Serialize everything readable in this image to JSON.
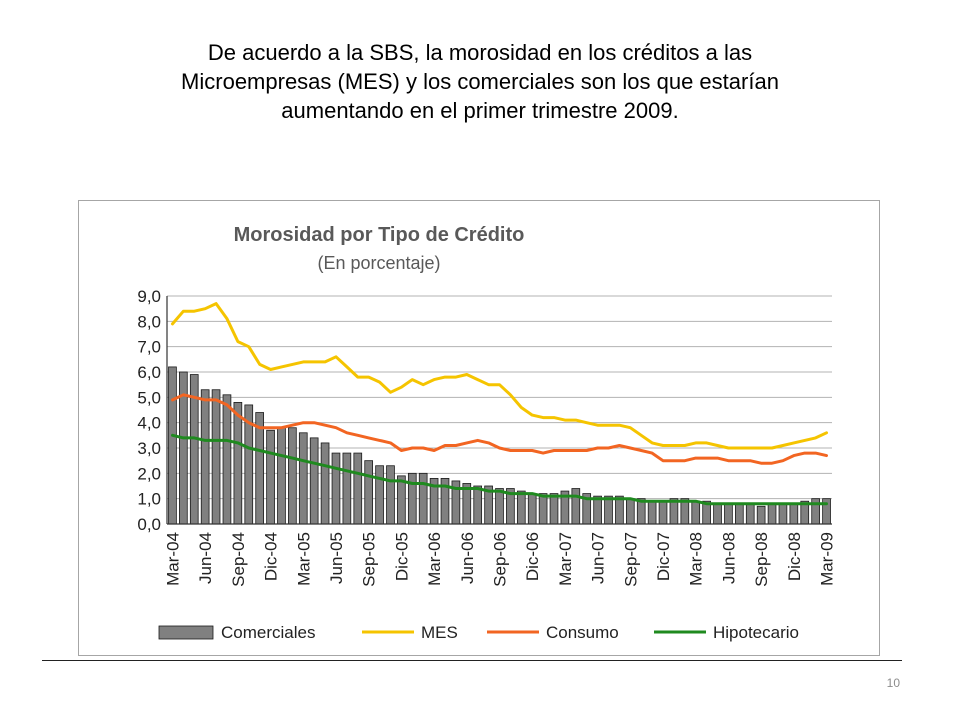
{
  "slide": {
    "title_lines": [
      "De acuerdo a la SBS, la morosidad en los créditos a las",
      "Microempresas (MES) y los comerciales son los que estarían",
      "aumentando en el primer trimestre 2009."
    ],
    "page_number": "10"
  },
  "chart_data": {
    "type": "bar",
    "title": "Morosidad por Tipo de Crédito",
    "subtitle": "(En porcentaje)",
    "ylim": [
      0,
      9
    ],
    "yticks": [
      "0,0",
      "1,0",
      "2,0",
      "3,0",
      "4,0",
      "5,0",
      "6,0",
      "7,0",
      "8,0",
      "9,0"
    ],
    "grid": true,
    "legend_position": "bottom",
    "x_tick_labels": [
      "Mar-04",
      "Jun-04",
      "Sep-04",
      "Dic-04",
      "Mar-05",
      "Jun-05",
      "Sep-05",
      "Dic-05",
      "Mar-06",
      "Jun-06",
      "Sep-06",
      "Dic-06",
      "Mar-07",
      "Jun-07",
      "Sep-07",
      "Dic-07",
      "Mar-08",
      "Jun-08",
      "Sep-08",
      "Dic-08",
      "Mar-09"
    ],
    "x": [
      "Mar-04",
      "Abr-04",
      "May-04",
      "Jun-04",
      "Jul-04",
      "Ago-04",
      "Sep-04",
      "Oct-04",
      "Nov-04",
      "Dic-04",
      "Ene-05",
      "Feb-05",
      "Mar-05",
      "Abr-05",
      "May-05",
      "Jun-05",
      "Jul-05",
      "Ago-05",
      "Sep-05",
      "Oct-05",
      "Nov-05",
      "Dic-05",
      "Ene-06",
      "Feb-06",
      "Mar-06",
      "Abr-06",
      "May-06",
      "Jun-06",
      "Jul-06",
      "Ago-06",
      "Sep-06",
      "Oct-06",
      "Nov-06",
      "Dic-06",
      "Ene-07",
      "Feb-07",
      "Mar-07",
      "Abr-07",
      "May-07",
      "Jun-07",
      "Jul-07",
      "Ago-07",
      "Sep-07",
      "Oct-07",
      "Nov-07",
      "Dic-07",
      "Ene-08",
      "Feb-08",
      "Mar-08",
      "Abr-08",
      "May-08",
      "Jun-08",
      "Jul-08",
      "Ago-08",
      "Sep-08",
      "Oct-08",
      "Nov-08",
      "Dic-08",
      "Ene-09",
      "Feb-09",
      "Mar-09"
    ],
    "series": [
      {
        "name": "Comerciales",
        "kind": "bar",
        "color": "#808080",
        "values": [
          6.2,
          6.0,
          5.9,
          5.3,
          5.3,
          5.1,
          4.8,
          4.7,
          4.4,
          3.7,
          3.8,
          3.8,
          3.6,
          3.4,
          3.2,
          2.8,
          2.8,
          2.8,
          2.5,
          2.3,
          2.3,
          1.9,
          2.0,
          2.0,
          1.8,
          1.8,
          1.7,
          1.6,
          1.5,
          1.5,
          1.4,
          1.4,
          1.3,
          1.2,
          1.2,
          1.2,
          1.3,
          1.4,
          1.2,
          1.1,
          1.1,
          1.1,
          1.0,
          1.0,
          0.9,
          0.9,
          1.0,
          1.0,
          0.9,
          0.9,
          0.8,
          0.8,
          0.8,
          0.8,
          0.7,
          0.8,
          0.8,
          0.8,
          0.9,
          1.0,
          1.0
        ]
      },
      {
        "name": "MES",
        "kind": "line",
        "color": "#f5c400",
        "values": [
          7.9,
          8.4,
          8.4,
          8.5,
          8.7,
          8.1,
          7.2,
          7.0,
          6.3,
          6.1,
          6.2,
          6.3,
          6.4,
          6.4,
          6.4,
          6.6,
          6.2,
          5.8,
          5.8,
          5.6,
          5.2,
          5.4,
          5.7,
          5.5,
          5.7,
          5.8,
          5.8,
          5.9,
          5.7,
          5.5,
          5.5,
          5.1,
          4.6,
          4.3,
          4.2,
          4.2,
          4.1,
          4.1,
          4.0,
          3.9,
          3.9,
          3.9,
          3.8,
          3.5,
          3.2,
          3.1,
          3.1,
          3.1,
          3.2,
          3.2,
          3.1,
          3.0,
          3.0,
          3.0,
          3.0,
          3.0,
          3.1,
          3.2,
          3.3,
          3.4,
          3.6
        ]
      },
      {
        "name": "Consumo",
        "kind": "line",
        "color": "#f26522",
        "values": [
          4.9,
          5.1,
          5.0,
          4.9,
          4.9,
          4.7,
          4.3,
          4.0,
          3.8,
          3.8,
          3.8,
          3.9,
          4.0,
          4.0,
          3.9,
          3.8,
          3.6,
          3.5,
          3.4,
          3.3,
          3.2,
          2.9,
          3.0,
          3.0,
          2.9,
          3.1,
          3.1,
          3.2,
          3.3,
          3.2,
          3.0,
          2.9,
          2.9,
          2.9,
          2.8,
          2.9,
          2.9,
          2.9,
          2.9,
          3.0,
          3.0,
          3.1,
          3.0,
          2.9,
          2.8,
          2.5,
          2.5,
          2.5,
          2.6,
          2.6,
          2.6,
          2.5,
          2.5,
          2.5,
          2.4,
          2.4,
          2.5,
          2.7,
          2.8,
          2.8,
          2.7
        ]
      },
      {
        "name": "Hipotecario",
        "kind": "line",
        "color": "#1f8a1f",
        "values": [
          3.5,
          3.4,
          3.4,
          3.3,
          3.3,
          3.3,
          3.2,
          3.0,
          2.9,
          2.8,
          2.7,
          2.6,
          2.5,
          2.4,
          2.3,
          2.2,
          2.1,
          2.0,
          1.9,
          1.8,
          1.7,
          1.7,
          1.6,
          1.6,
          1.5,
          1.5,
          1.4,
          1.4,
          1.4,
          1.3,
          1.3,
          1.2,
          1.2,
          1.2,
          1.1,
          1.1,
          1.1,
          1.1,
          1.0,
          1.0,
          1.0,
          1.0,
          1.0,
          0.9,
          0.9,
          0.9,
          0.9,
          0.9,
          0.9,
          0.8,
          0.8,
          0.8,
          0.8,
          0.8,
          0.8,
          0.8,
          0.8,
          0.8,
          0.8,
          0.8,
          0.8
        ]
      }
    ]
  }
}
